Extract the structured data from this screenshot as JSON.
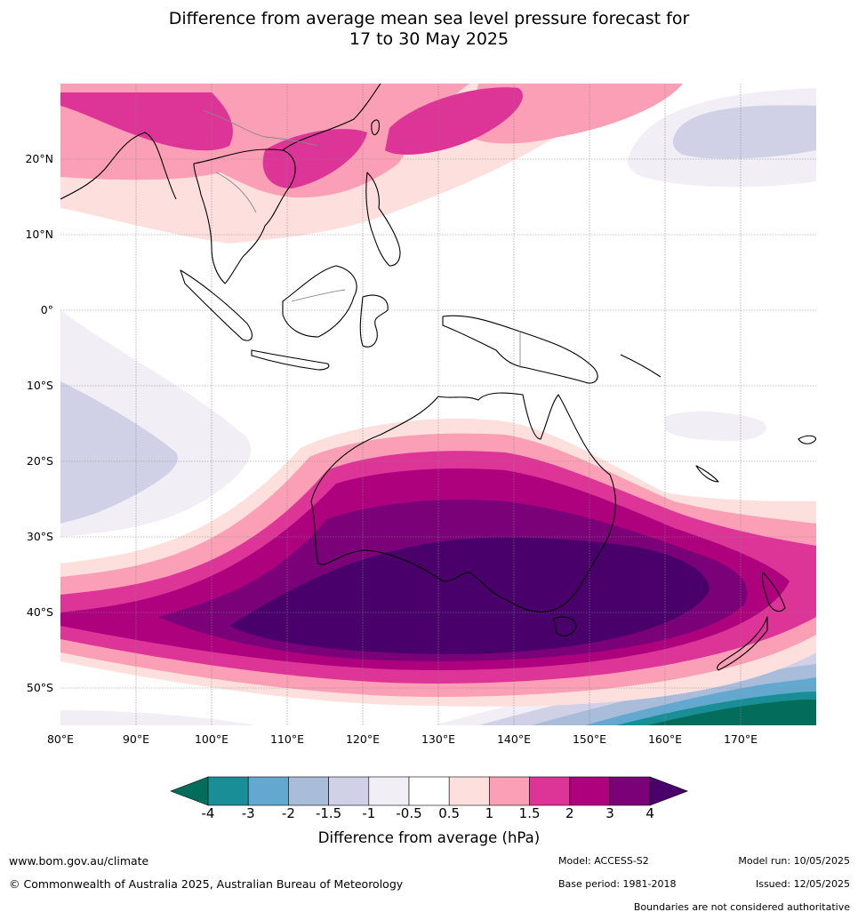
{
  "title_line1": "Difference from average mean sea level pressure forecast for",
  "title_line2": "17 to 30 May 2025",
  "lat_labels": [
    "20°N",
    "10°N",
    "0°",
    "10°S",
    "20°S",
    "30°S",
    "40°S",
    "50°S"
  ],
  "lon_labels": [
    "80°E",
    "90°E",
    "100°E",
    "110°E",
    "120°E",
    "130°E",
    "140°E",
    "150°E",
    "160°E",
    "170°E"
  ],
  "colorbar": {
    "ticks": [
      "-4",
      "-3",
      "-2",
      "-1.5",
      "-1",
      "-0.5",
      "0.5",
      "1",
      "1.5",
      "2",
      "3",
      "4"
    ],
    "colors": [
      "#046c5a",
      "#1a8e96",
      "#63a9cf",
      "#a9bcd9",
      "#d0d1e6",
      "#f1eef6",
      "#ffffff",
      "#fde0dd",
      "#fa9fb5",
      "#dd3497",
      "#ae017e",
      "#7a0177",
      "#49006a"
    ],
    "label": "Difference from average (hPa)"
  },
  "footer": {
    "website": "www.bom.gov.au/climate",
    "copyright": "© Commonwealth of Australia 2025, Australian Bureau of Meteorology",
    "model": "Model: ACCESS-S2",
    "base_period": "Base period: 1981-2018",
    "model_run": "Model run: 10/05/2025",
    "issued": "Issued: 12/05/2025",
    "disclaimer": "Boundaries are not considered authoritative"
  }
}
